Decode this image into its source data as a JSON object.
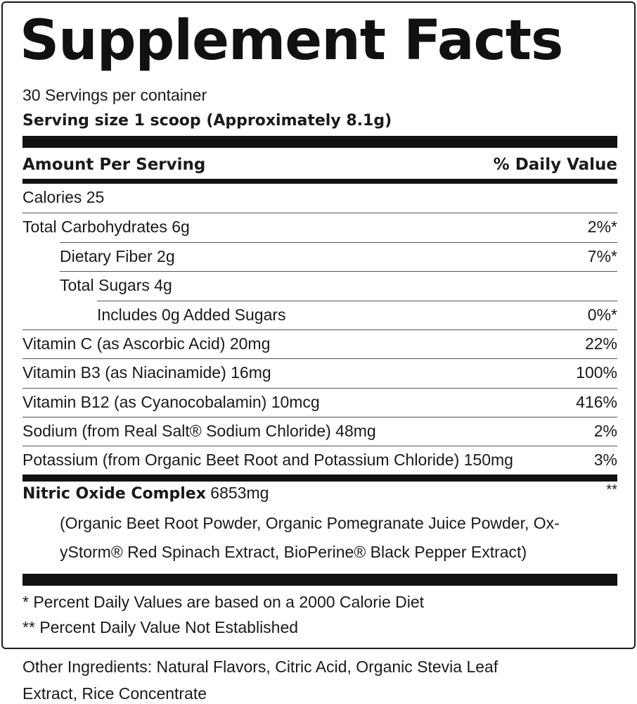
{
  "title": "Supplement Facts",
  "servings_per_container": "30 Servings per container",
  "serving_size": "Serving size 1 scoop (Approximately 8.1g)",
  "header": {
    "amount": "Amount Per Serving",
    "dv": "% Daily Value"
  },
  "rows": [
    {
      "name": "Calories 25",
      "dv": ""
    },
    {
      "name": "Total Carbohydrates 6g",
      "dv": "2%*"
    },
    {
      "name": "Dietary Fiber 2g",
      "dv": "7%*"
    },
    {
      "name": "Total Sugars 4g",
      "dv": ""
    },
    {
      "name": "Includes 0g Added Sugars",
      "dv": "0%*"
    },
    {
      "name": "Vitamin C (as Ascorbic Acid) 20mg",
      "dv": "22%"
    },
    {
      "name": "Vitamin B3 (as Niacinamide) 16mg",
      "dv": "100%"
    },
    {
      "name": "Vitamin B12 (as Cyanocobalamin) 10mcg",
      "dv": "416%"
    },
    {
      "name": "Sodium (from Real Salt® Sodium Chloride) 48mg",
      "dv": "2%"
    },
    {
      "name": "Potassium (from Organic Beet Root and Potassium Chloride) 150mg",
      "dv": "3%"
    }
  ],
  "complex": {
    "name": "Nitric Oxide Complex",
    "amount": "6853mg",
    "dv": "**",
    "line1": "(Organic Beet Root Powder, Organic Pomegranate Juice Powder, Ox-",
    "line2": "yStorm® Red Spinach Extract, BioPerine® Black Pepper Extract)"
  },
  "footnotes": [
    "* Percent Daily Values are based on a 2000 Calorie Diet",
    "** Percent Daily Value Not Established"
  ],
  "other_ingredients": {
    "line1": "Other Ingredients: Natural Flavors, Citric Acid, Organic Stevia Leaf",
    "line2": "Extract, Rice Concentrate"
  }
}
